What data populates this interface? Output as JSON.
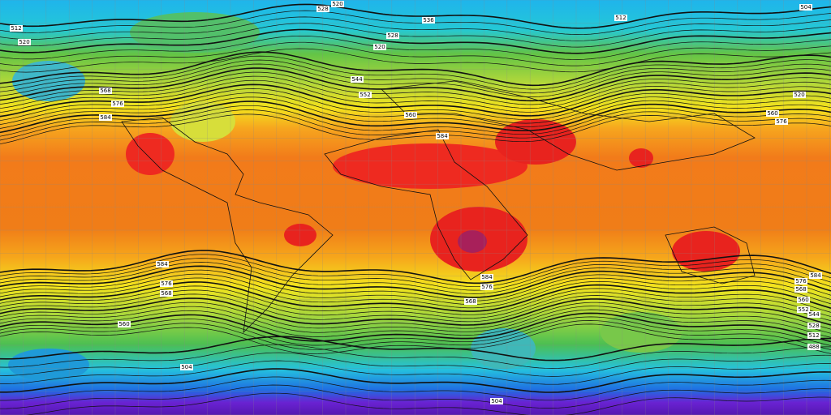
{
  "contour_labels": [
    "512",
    "520",
    "520",
    "528",
    "536",
    "528",
    "520",
    "512",
    "504",
    "544",
    "552",
    "560",
    "568",
    "576",
    "584",
    "584",
    "584",
    "576",
    "568",
    "560",
    "584",
    "576",
    "568",
    "584",
    "576",
    "568",
    "560",
    "552",
    "544",
    "528",
    "512",
    "488",
    "504",
    "504",
    "520",
    "560",
    "576"
  ]
}
